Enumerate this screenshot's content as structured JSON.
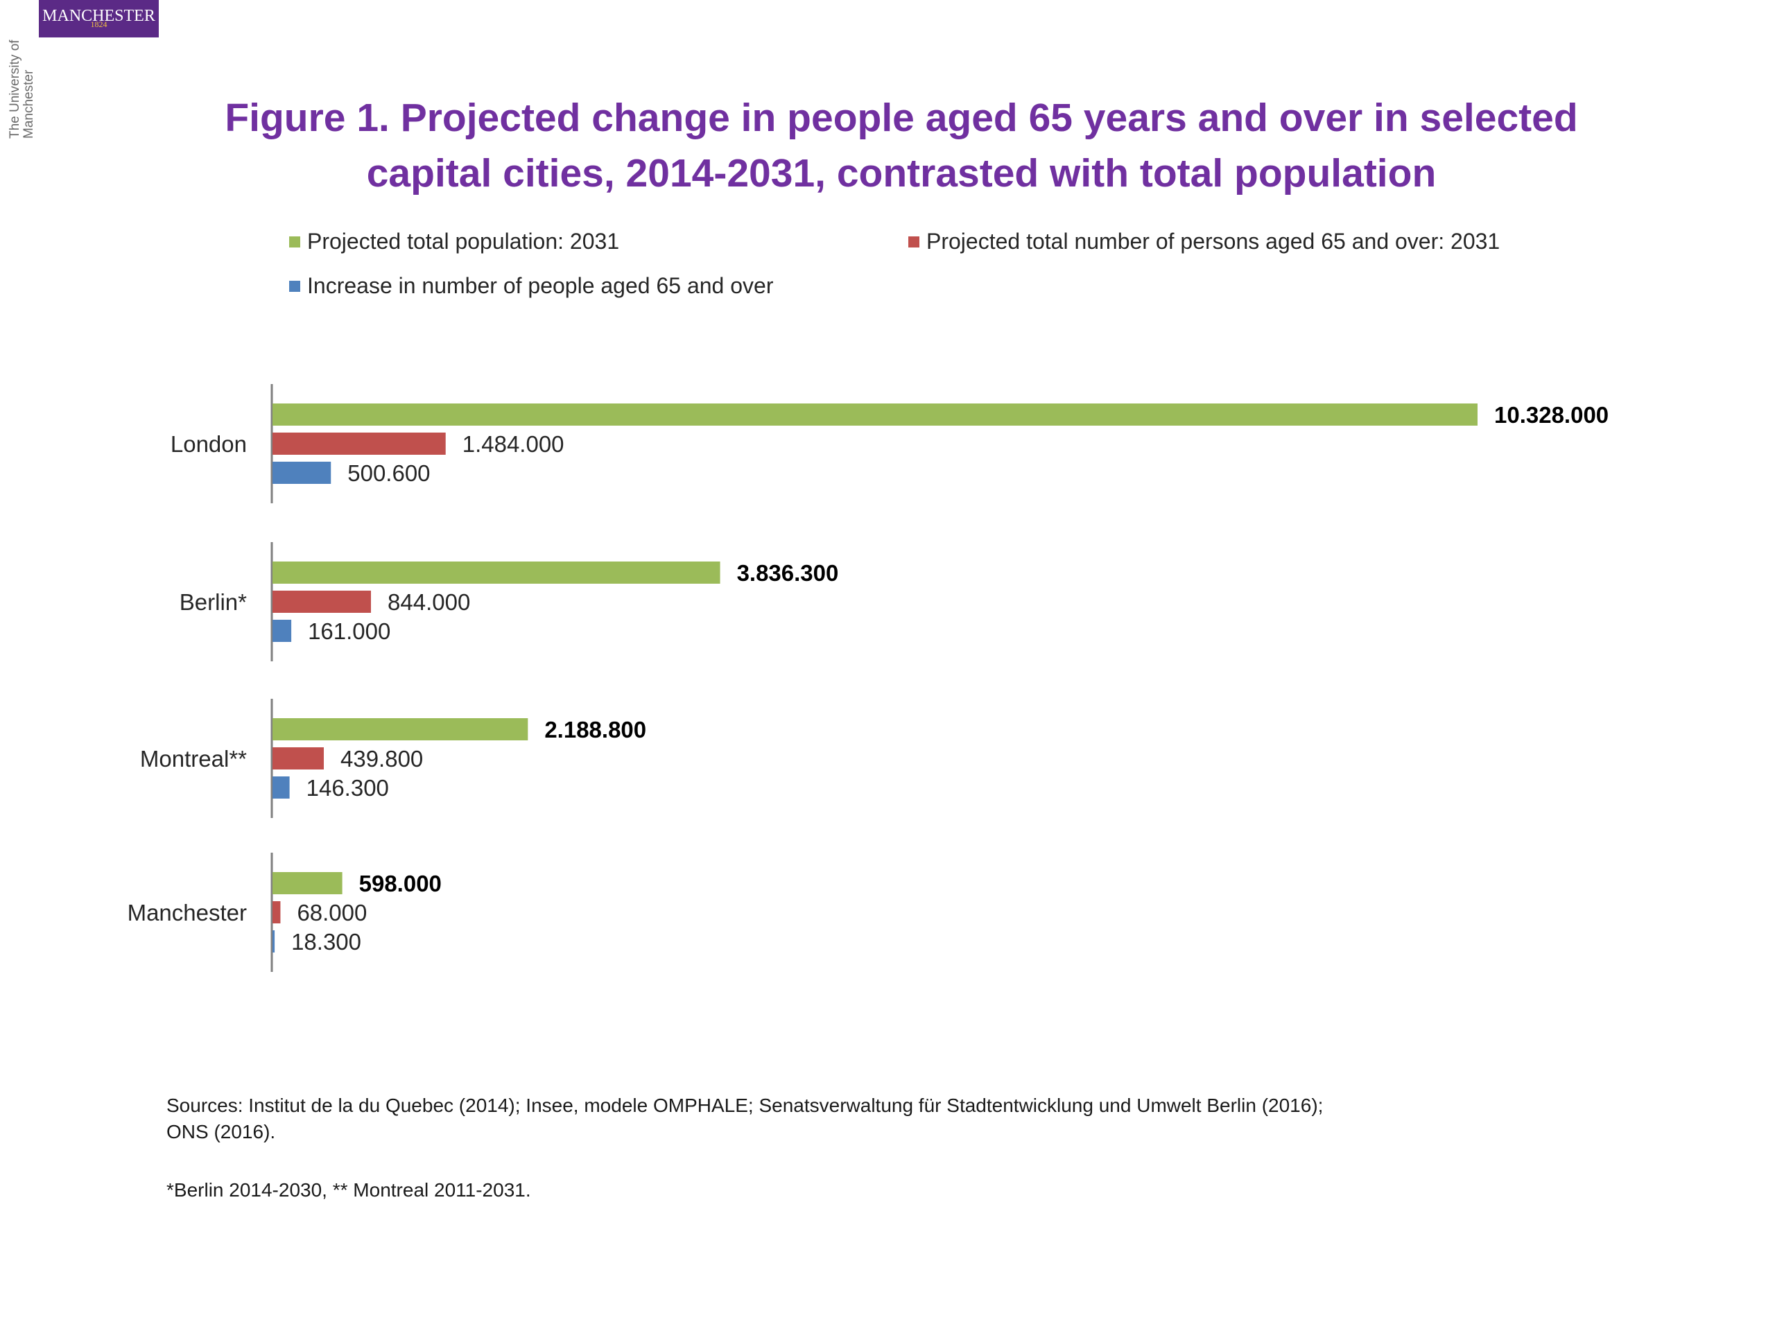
{
  "logo": {
    "text": "MANCHESTER",
    "year": "1824",
    "university_text": "The University of Manchester"
  },
  "colors": {
    "title": "#7030a0",
    "total_population": "#9bbb59",
    "persons_65": "#c0504d",
    "increase_65": "#4f81bd"
  },
  "chart_data": {
    "type": "bar",
    "orientation": "horizontal",
    "title": "Figure 1. Projected change in people aged 65 years and over in selected capital cities, 2014-2031, contrasted with total population",
    "categories": [
      "London",
      "Berlin*",
      "Montreal**",
      "Manchester"
    ],
    "series": [
      {
        "name": "Projected total population: 2031",
        "values": [
          10328000,
          3836300,
          2188800,
          598000
        ],
        "labels": [
          "10.328.000",
          "3.836.300",
          "2.188.800",
          "598.000"
        ],
        "color": "#9bbb59",
        "label_bold": true
      },
      {
        "name": "Projected total number of persons aged 65 and over: 2031",
        "values": [
          1484000,
          844000,
          439800,
          68000
        ],
        "labels": [
          "1.484.000",
          "844.000",
          "439.800",
          "68.000"
        ],
        "color": "#c0504d",
        "label_bold": false
      },
      {
        "name": "Increase in number of people aged 65 and over",
        "values": [
          500600,
          161000,
          146300,
          18300
        ],
        "labels": [
          "500.600",
          "161.000",
          "146.300",
          "18.300"
        ],
        "color": "#4f81bd",
        "label_bold": false
      }
    ],
    "xlim": [
      0,
      10328000
    ],
    "grid": false,
    "legend_position": "top"
  },
  "notes": {
    "sources": "Sources: Institut de la du Quebec (2014); Insee, modele OMPHALE; Senatsverwaltung für Stadtentwicklung und Umwelt Berlin (2016);\nONS (2016).",
    "footnote": "*Berlin 2014-2030, ** Montreal 2011-2031."
  }
}
